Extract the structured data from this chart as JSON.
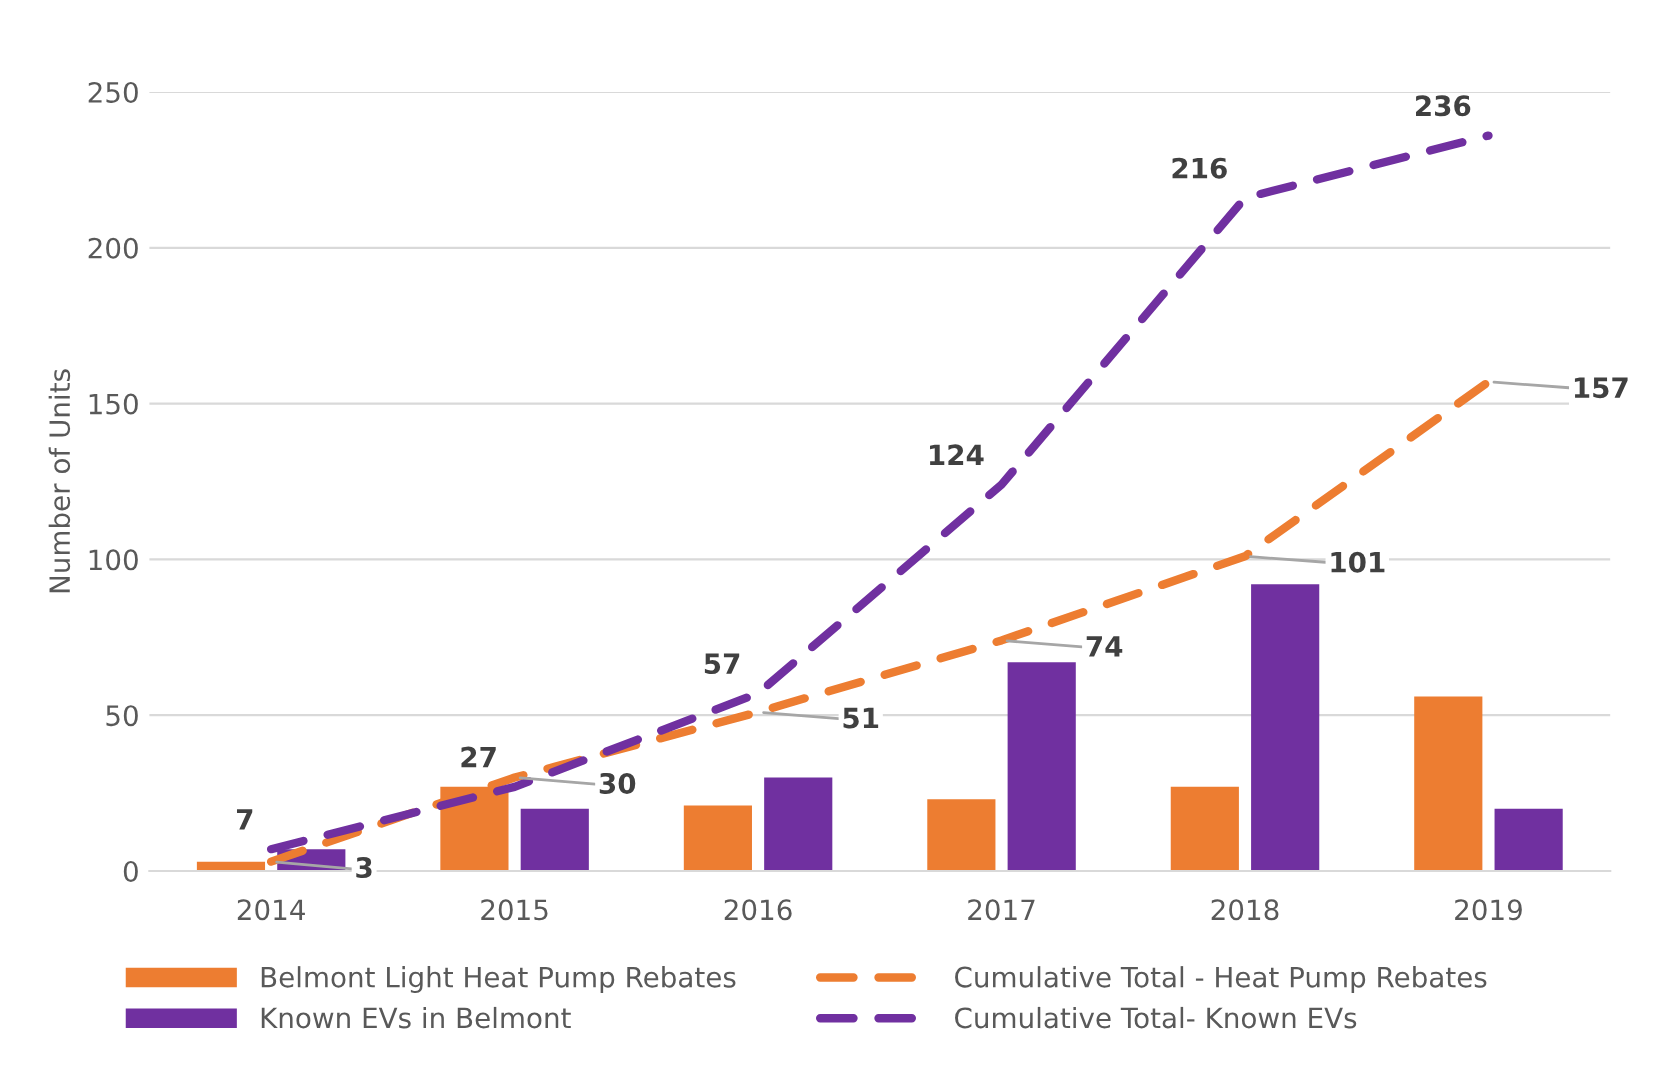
{
  "chart_data": {
    "type": "bar",
    "ylabel": "Number of Units",
    "categories": [
      "2014",
      "2015",
      "2016",
      "2017",
      "2018",
      "2019"
    ],
    "series": [
      {
        "name": "Belmont Light Heat Pump Rebates",
        "color": "#ed7d31",
        "values": [
          3,
          27,
          21,
          23,
          27,
          56
        ]
      },
      {
        "name": "Known EVs in Belmont",
        "color": "#7030a0",
        "values": [
          7,
          20,
          30,
          67,
          92,
          20
        ]
      },
      {
        "name": "Cumulative Total - Heat Pump Rebates",
        "type": "line",
        "line_style": "dashed",
        "color": "#ed7d31",
        "data_labels": true,
        "values": [
          3,
          30,
          51,
          74,
          101,
          157
        ]
      },
      {
        "name": "Cumulative Total- Known EVs",
        "type": "line",
        "line_style": "dashed",
        "color": "#7030a0",
        "data_labels": true,
        "values": [
          7,
          27,
          57,
          124,
          216,
          236
        ]
      }
    ],
    "ylim": [
      0,
      250
    ],
    "yticks": [
      0,
      50,
      100,
      150,
      200,
      250
    ],
    "grid": "y",
    "legend": "bottom"
  }
}
